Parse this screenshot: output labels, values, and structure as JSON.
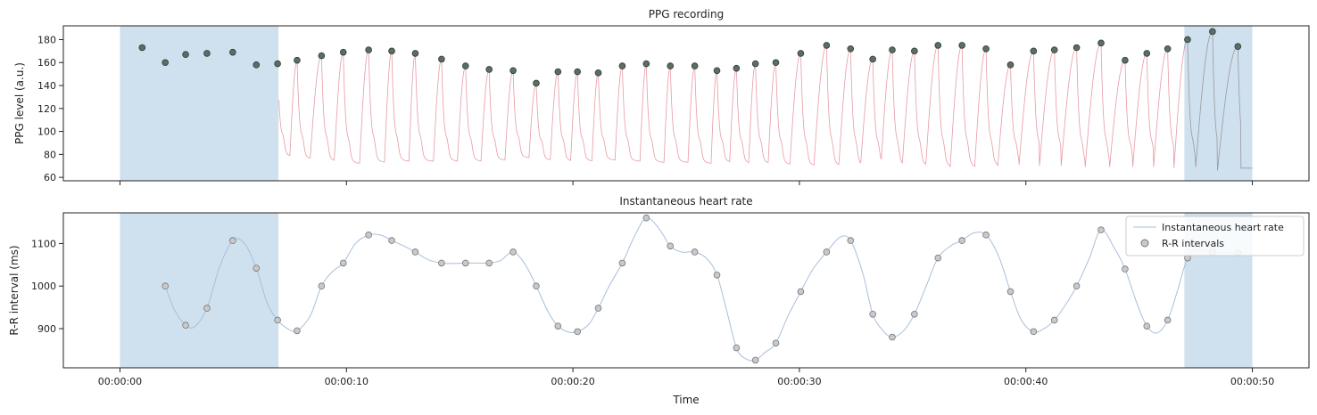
{
  "colors": {
    "shade": "#cfe0ee",
    "ppg_line": "#e79aa4",
    "ppg_line_shaded": "#9a9aa0",
    "peak_fill": "#5a6e66",
    "hr_line": "#a9bfdc",
    "rr_fill": "#c9c9c9",
    "rr_stroke": "#777777"
  },
  "chart_data": [
    {
      "type": "line",
      "title": "PPG recording",
      "xlabel": "",
      "ylabel": "PPG level (a.u.)",
      "xlim": [
        -2.5,
        52.5
      ],
      "ylim": [
        57,
        192
      ],
      "yticks": [
        60,
        80,
        100,
        120,
        140,
        160,
        180
      ],
      "ytick_labels": [
        "60",
        "80",
        "100",
        "120",
        "140",
        "160",
        "180"
      ],
      "shaded_regions": [
        [
          0,
          7.0
        ],
        [
          47.0,
          50.0
        ]
      ],
      "signal": {
        "start": 0,
        "end": 50,
        "baseline": 72,
        "beat_decay_s": 0.12,
        "notch_level": 60,
        "notch_rise_s": 0.25,
        "notch_width_s": 0.06,
        "start_value": 138,
        "troughs": [
          {
            "t": 0.02,
            "v": 138
          },
          {
            "t": 0.62,
            "v": 66
          },
          {
            "t": 1.64,
            "v": 69
          },
          {
            "t": 2.58,
            "v": 72
          },
          {
            "t": 3.52,
            "v": 71
          },
          {
            "t": 4.46,
            "v": 71
          },
          {
            "t": 5.56,
            "v": 71
          },
          {
            "t": 6.6,
            "v": 72
          },
          {
            "t": 7.5,
            "v": 78
          },
          {
            "t": 8.4,
            "v": 76
          },
          {
            "t": 9.46,
            "v": 74
          },
          {
            "t": 10.58,
            "v": 72
          },
          {
            "t": 11.68,
            "v": 73
          },
          {
            "t": 12.76,
            "v": 74
          },
          {
            "t": 13.84,
            "v": 74
          },
          {
            "t": 14.9,
            "v": 74
          },
          {
            "t": 15.94,
            "v": 74
          },
          {
            "t": 17.0,
            "v": 75
          },
          {
            "t": 18.06,
            "v": 77
          },
          {
            "t": 19.0,
            "v": 75
          },
          {
            "t": 19.9,
            "v": 74
          },
          {
            "t": 20.84,
            "v": 74
          },
          {
            "t": 21.86,
            "v": 75
          },
          {
            "t": 22.96,
            "v": 74
          },
          {
            "t": 24.02,
            "v": 73
          },
          {
            "t": 25.08,
            "v": 73
          },
          {
            "t": 26.1,
            "v": 72
          },
          {
            "t": 26.92,
            "v": 73
          },
          {
            "t": 27.76,
            "v": 72
          },
          {
            "t": 28.62,
            "v": 72
          },
          {
            "t": 29.58,
            "v": 71
          },
          {
            "t": 30.64,
            "v": 70
          },
          {
            "t": 31.74,
            "v": 70
          },
          {
            "t": 32.7,
            "v": 70
          },
          {
            "t": 33.6,
            "v": 70
          },
          {
            "t": 34.54,
            "v": 70
          },
          {
            "t": 35.58,
            "v": 70
          },
          {
            "t": 36.66,
            "v": 69
          },
          {
            "t": 37.74,
            "v": 69
          },
          {
            "t": 38.76,
            "v": 70
          },
          {
            "t": 39.7,
            "v": 71
          },
          {
            "t": 40.6,
            "v": 70
          },
          {
            "t": 41.56,
            "v": 70
          },
          {
            "t": 42.62,
            "v": 69
          },
          {
            "t": 43.7,
            "v": 69
          },
          {
            "t": 44.72,
            "v": 69
          },
          {
            "t": 45.64,
            "v": 69
          },
          {
            "t": 46.54,
            "v": 68
          },
          {
            "t": 47.5,
            "v": 69
          },
          {
            "t": 48.46,
            "v": 66
          },
          {
            "t": 49.5,
            "v": 68
          },
          {
            "t": 49.97,
            "v": 68
          }
        ]
      },
      "peaks": {
        "t": [
          0.98,
          2.0,
          2.9,
          3.84,
          4.98,
          6.02,
          6.96,
          7.82,
          8.9,
          9.86,
          10.98,
          12.0,
          13.04,
          14.2,
          15.26,
          16.3,
          17.36,
          18.38,
          19.34,
          20.2,
          21.12,
          22.18,
          23.24,
          24.3,
          25.38,
          26.36,
          27.22,
          28.06,
          28.96,
          30.06,
          31.2,
          32.26,
          33.24,
          34.1,
          35.08,
          36.12,
          37.18,
          38.24,
          39.32,
          40.34,
          41.26,
          42.24,
          43.32,
          44.38,
          45.34,
          46.26,
          47.14,
          48.24,
          49.36
        ],
        "v": [
          173,
          160,
          167,
          168,
          169,
          158,
          159,
          162,
          166,
          169,
          171,
          170,
          168,
          163,
          157,
          154,
          153,
          142,
          152,
          152,
          151,
          157,
          159,
          157,
          157,
          153,
          155,
          159,
          160,
          168,
          175,
          172,
          163,
          171,
          170,
          175,
          175,
          172,
          158,
          170,
          171,
          173,
          177,
          162,
          168,
          172,
          180,
          187,
          174
        ]
      },
      "series": [
        {
          "name": "",
          "kind": "signal"
        },
        {
          "name": "",
          "kind": "peaks"
        }
      ]
    },
    {
      "type": "line",
      "title": "Instantaneous heart rate",
      "xlabel": "Time",
      "ylabel": "R-R interval (ms)",
      "xlim": [
        -2.5,
        52.5
      ],
      "ylim": [
        808,
        1172
      ],
      "yticks": [
        900,
        1000,
        1100
      ],
      "ytick_labels": [
        "900",
        "1000",
        "1100"
      ],
      "xticks": [
        0,
        10,
        20,
        30,
        40,
        50
      ],
      "xtick_labels": [
        "00:00:00",
        "00:00:10",
        "00:00:20",
        "00:00:30",
        "00:00:40",
        "00:00:50"
      ],
      "shaded_regions": [
        [
          0,
          7.0
        ],
        [
          47.0,
          50.0
        ]
      ],
      "legend": {
        "placement": "top-right",
        "items": [
          "Instantaneous heart rate",
          "R-R intervals"
        ]
      },
      "series": [
        {
          "name": "Instantaneous heart rate",
          "kind": "line",
          "x": [
            2.0,
            2.4,
            2.9,
            3.3,
            3.84,
            4.4,
            4.98,
            5.5,
            6.02,
            6.5,
            6.96,
            7.4,
            7.82,
            8.4,
            8.9,
            9.4,
            9.86,
            10.4,
            10.98,
            11.5,
            12.0,
            12.5,
            13.04,
            13.6,
            14.2,
            14.7,
            15.26,
            15.8,
            16.3,
            16.8,
            17.36,
            17.9,
            18.38,
            18.9,
            19.34,
            19.8,
            20.2,
            20.7,
            21.12,
            21.6,
            22.18,
            22.7,
            23.24,
            23.8,
            24.3,
            24.8,
            25.38,
            25.9,
            26.36,
            26.8,
            27.22,
            27.6,
            28.06,
            28.5,
            28.96,
            29.5,
            30.06,
            30.6,
            31.2,
            31.8,
            32.26,
            32.8,
            33.24,
            33.7,
            34.1,
            34.6,
            35.08,
            35.6,
            36.12,
            36.7,
            37.18,
            37.7,
            38.24,
            38.8,
            39.32,
            39.8,
            40.34,
            40.8,
            41.26,
            41.8,
            42.24,
            42.8,
            43.32,
            43.9,
            44.38,
            44.9,
            45.34,
            45.8,
            46.26,
            46.7,
            47.14,
            47.6,
            48.24,
            48.8,
            49.36
          ],
          "y": [
            1000,
            945,
            908,
            905,
            948,
            1045,
            1107,
            1100,
            1042,
            960,
            920,
            900,
            895,
            930,
            1000,
            1035,
            1054,
            1100,
            1120,
            1120,
            1107,
            1095,
            1080,
            1062,
            1054,
            1053,
            1054,
            1054,
            1054,
            1060,
            1080,
            1050,
            1000,
            940,
            906,
            892,
            893,
            910,
            948,
            1000,
            1054,
            1115,
            1160,
            1135,
            1094,
            1080,
            1080,
            1065,
            1026,
            940,
            855,
            830,
            826,
            845,
            866,
            930,
            987,
            1040,
            1080,
            1115,
            1107,
            1030,
            934,
            895,
            880,
            895,
            934,
            1000,
            1066,
            1095,
            1107,
            1125,
            1120,
            1070,
            987,
            920,
            893,
            900,
            920,
            960,
            1000,
            1065,
            1132,
            1090,
            1040,
            960,
            906,
            890,
            920,
            990,
            1066,
            1085,
            1080,
            1079,
            1078
          ]
        },
        {
          "name": "R-R intervals",
          "kind": "scatter",
          "x": [
            2.0,
            2.9,
            3.84,
            4.98,
            6.02,
            6.96,
            7.82,
            8.9,
            9.86,
            10.98,
            12.0,
            13.04,
            14.2,
            15.26,
            16.3,
            17.36,
            18.38,
            19.34,
            20.2,
            21.12,
            22.18,
            23.24,
            24.3,
            25.38,
            26.36,
            27.22,
            28.06,
            28.96,
            30.06,
            31.2,
            32.26,
            33.24,
            34.1,
            35.08,
            36.12,
            37.18,
            38.24,
            39.32,
            40.34,
            41.26,
            42.24,
            43.32,
            44.38,
            45.34,
            46.26,
            47.14,
            48.24,
            49.36
          ],
          "y": [
            1000,
            908,
            948,
            1107,
            1042,
            920,
            895,
            1000,
            1054,
            1120,
            1107,
            1080,
            1054,
            1054,
            1054,
            1080,
            1000,
            906,
            893,
            948,
            1054,
            1160,
            1094,
            1080,
            1026,
            855,
            826,
            866,
            987,
            1080,
            1107,
            934,
            880,
            934,
            1066,
            1107,
            1120,
            987,
            893,
            920,
            1000,
            1132,
            1040,
            906,
            920,
            1066,
            1080,
            1078
          ]
        }
      ]
    }
  ]
}
